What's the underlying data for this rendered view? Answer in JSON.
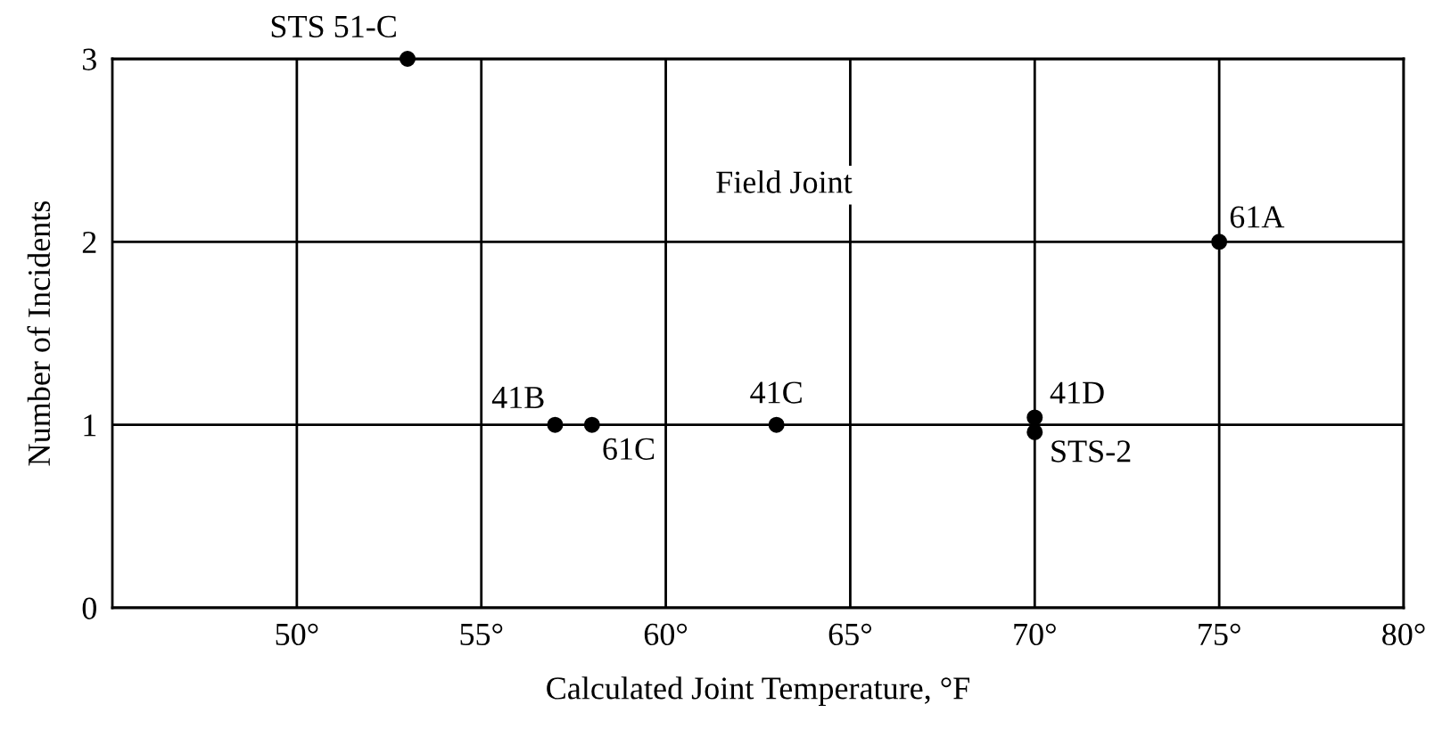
{
  "chart_data": {
    "type": "scatter",
    "xlabel": "Calculated Joint Temperature, °F",
    "ylabel": "Number of Incidents",
    "x": [
      53,
      57,
      58,
      63,
      70,
      70,
      75
    ],
    "values": [
      3,
      1,
      1,
      1,
      1.04,
      0.96,
      2
    ],
    "color": "#000000",
    "marker": "circle",
    "xlim": [
      45,
      80
    ],
    "xticks": [
      {
        "value": 50,
        "label": "50°"
      },
      {
        "value": 55,
        "label": "55°"
      },
      {
        "value": 60,
        "label": "60°"
      },
      {
        "value": 65,
        "label": "65°"
      },
      {
        "value": 70,
        "label": "70°"
      },
      {
        "value": 75,
        "label": "75°"
      },
      {
        "value": 80,
        "label": "80°"
      }
    ],
    "ylim": [
      0,
      3
    ],
    "yticks": [
      0,
      1,
      2,
      3
    ],
    "grid": true,
    "annotations": [
      "Field Joint",
      {
        "text": "STS 51-C",
        "x": 53,
        "y": 3
      },
      {
        "text": "41B",
        "x": 57,
        "y": 1
      },
      {
        "text": "61C",
        "x": 58,
        "y": 1
      },
      {
        "text": "41C",
        "x": 63,
        "y": 1
      },
      {
        "text": "41D",
        "x": 70,
        "y": 1.04
      },
      {
        "text": "STS-2",
        "x": 70,
        "y": 0.96
      },
      {
        "text": "61A",
        "x": 75,
        "y": 2
      }
    ]
  }
}
